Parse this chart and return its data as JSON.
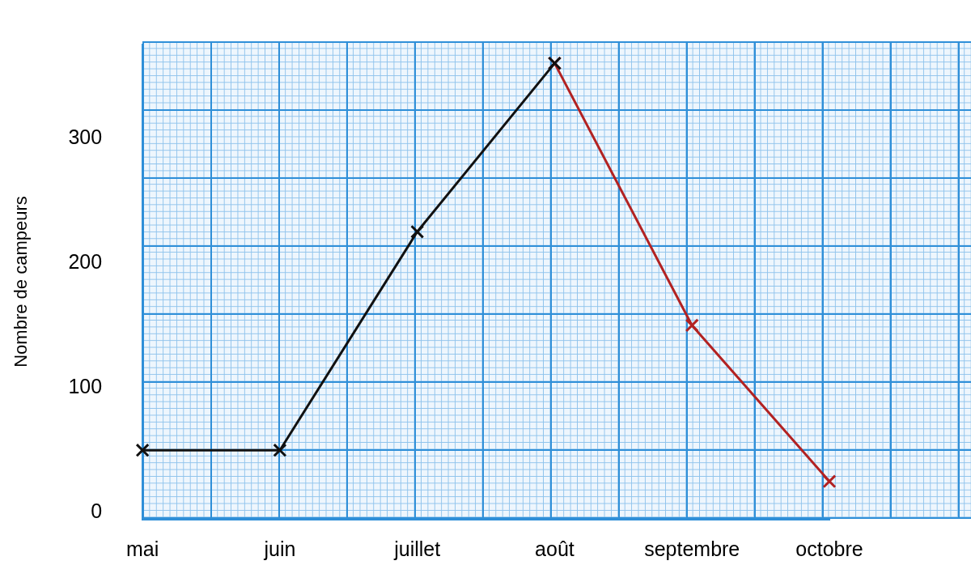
{
  "chart_data": {
    "type": "line",
    "ylabel": "Nombre de campeurs",
    "categories": [
      "mai",
      "juin",
      "juillet",
      "août",
      "septembre",
      "octobre"
    ],
    "series": [
      {
        "color": "#111111",
        "values": [
          50,
          50,
          225,
          360,
          null,
          null
        ]
      },
      {
        "color": "#b22222",
        "values": [
          null,
          null,
          null,
          360,
          150,
          25
        ]
      }
    ],
    "ylim": [
      -5,
      375
    ],
    "yticks": [
      0,
      100,
      200,
      300
    ],
    "grid": false,
    "legend": false,
    "marker": "cross",
    "line_style": "solid"
  }
}
